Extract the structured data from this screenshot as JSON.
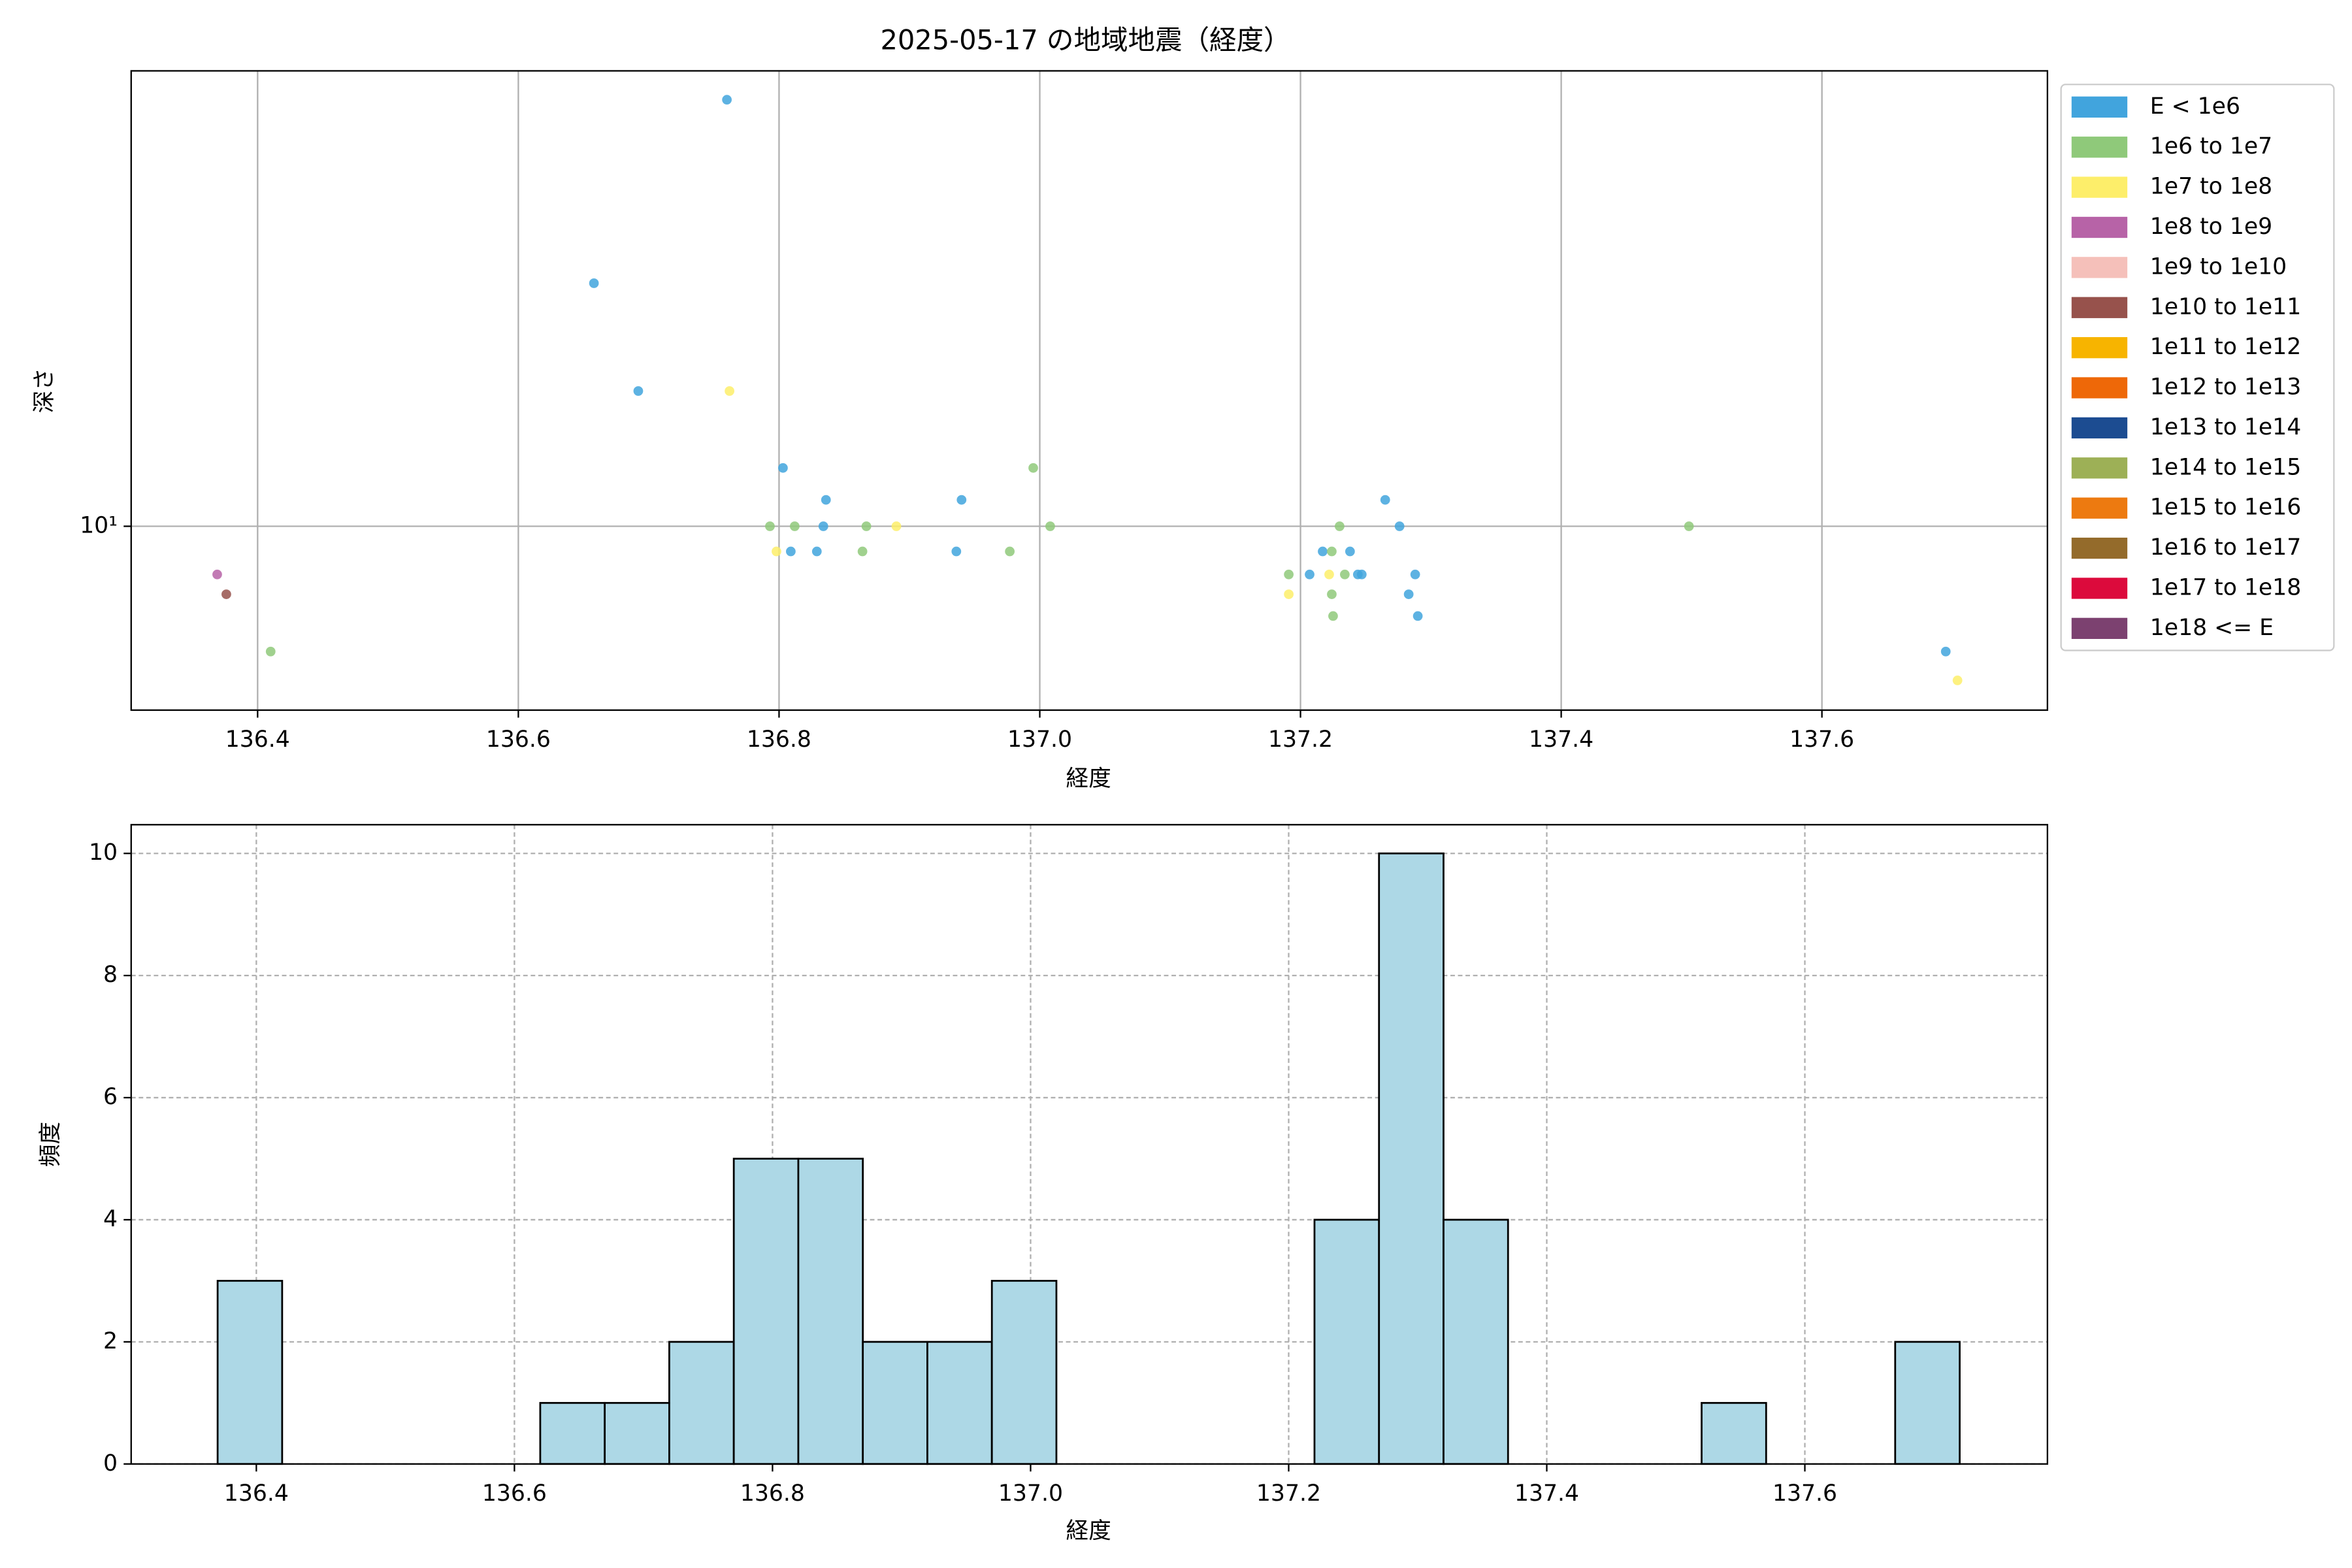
{
  "chart_data": [
    {
      "type": "scatter",
      "title": "2025-05-17 の地域地震（経度）",
      "x_label": "経度",
      "y_label": "深さ",
      "xlim": [
        136.303,
        137.773
      ],
      "ylim": [
        4.27,
        82.3
      ],
      "yscale": "log",
      "grid": true,
      "legend": "outside right",
      "xticks": [
        136.4,
        136.6,
        136.8,
        {
          "value": 137,
          "label": "137.0"
        },
        137.2,
        137.4,
        137.6
      ],
      "yticks": [
        {
          "value": 10,
          "label": "10¹"
        }
      ],
      "series": [
        {
          "name": "E < 1e6",
          "color": "#41a4dd",
          "x": [
            136.76,
            136.658,
            136.692,
            136.803,
            136.836,
            136.94,
            136.834,
            136.809,
            136.829,
            136.936,
            137.207,
            137.217,
            137.238,
            137.244,
            137.247,
            137.265,
            137.276,
            137.288,
            137.283,
            137.29,
            137.695
          ],
          "values": [
            72.0,
            30.8,
            18.7,
            13.1,
            11.3,
            11.3,
            10,
            8.9,
            8.9,
            8.9,
            8.0,
            8.9,
            8.9,
            8.0,
            8.0,
            11.3,
            10,
            8.0,
            7.3,
            6.6,
            5.6
          ]
        },
        {
          "name": "1e6 to 1e7",
          "color": "#8fc97a",
          "x": [
            136.41,
            136.793,
            136.812,
            136.867,
            136.864,
            136.995,
            137.008,
            136.977,
            137.191,
            137.224,
            137.23,
            137.234,
            137.224,
            137.225,
            137.498
          ],
          "values": [
            5.6,
            10,
            10,
            10,
            8.9,
            13.1,
            10,
            8.9,
            8.0,
            8.9,
            10,
            8.0,
            7.3,
            6.6,
            10
          ]
        },
        {
          "name": "1e7 to 1e8",
          "color": "#fdee6a",
          "x": [
            136.762,
            136.798,
            136.89,
            137.191,
            137.222,
            137.704
          ],
          "values": [
            18.7,
            8.9,
            10,
            7.3,
            8.0,
            4.9
          ]
        },
        {
          "name": "1e8 to 1e9",
          "color": "#b763a7",
          "x": [
            136.369
          ],
          "values": [
            8.0
          ]
        },
        {
          "name": "1e9 to 1e10",
          "color": "#f5c0ba",
          "x": [],
          "values": []
        },
        {
          "name": "1e10 to 1e11",
          "color": "#97524c",
          "x": [
            136.376
          ],
          "values": [
            7.3
          ]
        },
        {
          "name": "1e11 to 1e12",
          "color": "#f7b400",
          "x": [],
          "values": []
        },
        {
          "name": "1e12 to 1e13",
          "color": "#ee6808",
          "x": [],
          "values": []
        },
        {
          "name": "1e13 to 1e14",
          "color": "#1c4c91",
          "x": [],
          "values": []
        },
        {
          "name": "1e14 to 1e15",
          "color": "#9db056",
          "x": [],
          "values": []
        },
        {
          "name": "1e15 to 1e16",
          "color": "#ed7a10",
          "x": [],
          "values": []
        },
        {
          "name": "1e16 to 1e17",
          "color": "#946b2b",
          "x": [],
          "values": []
        },
        {
          "name": "1e17 to 1e18",
          "color": "#dc0a3c",
          "x": [],
          "values": []
        },
        {
          "name": "1e18 <= E",
          "color": "#7c4170",
          "x": [],
          "values": []
        }
      ]
    },
    {
      "type": "histogram",
      "x_label": "経度",
      "y_label": "頻度",
      "color": "#add8e6",
      "edge_color": "#000000",
      "xlim": [
        136.303,
        137.788
      ],
      "ylim": [
        0,
        10.47
      ],
      "grid": true,
      "xticks": [
        136.4,
        136.6,
        136.8,
        {
          "value": 137,
          "label": "137.0"
        },
        137.2,
        137.4,
        137.6
      ],
      "yticks": [
        0,
        2,
        4,
        6,
        8,
        10
      ],
      "bins": [
        136.37,
        136.42,
        136.47,
        136.52,
        136.57,
        136.62,
        136.67,
        136.72,
        136.77,
        136.82,
        136.87,
        136.92,
        136.97,
        137.02,
        137.07,
        137.12,
        137.17,
        137.22,
        137.27,
        137.32,
        137.37,
        137.42,
        137.47,
        137.52,
        137.57,
        137.62,
        137.67,
        137.72
      ],
      "values": [
        3,
        0,
        0,
        0,
        0,
        1,
        1,
        2,
        5,
        5,
        2,
        2,
        3,
        0,
        0,
        0,
        0,
        4,
        10,
        4,
        0,
        0,
        0,
        1,
        0,
        0,
        2
      ]
    }
  ]
}
